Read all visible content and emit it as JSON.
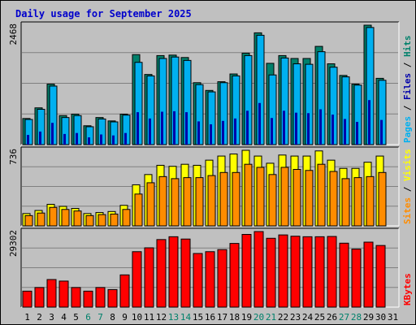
{
  "chart_data": [
    {
      "type": "bar",
      "title": "Daily usage for September 2025",
      "ymax_label": "2468",
      "ylim": [
        0,
        2468
      ],
      "x": [
        "1",
        "2",
        "3",
        "4",
        "5",
        "6",
        "7",
        "8",
        "9",
        "10",
        "11",
        "12",
        "13",
        "14",
        "15",
        "16",
        "17",
        "18",
        "19",
        "20",
        "21",
        "22",
        "23",
        "24",
        "25",
        "26",
        "27",
        "28",
        "29",
        "30",
        "31"
      ],
      "weekend_days": [
        "6",
        "7",
        "13",
        "14",
        "20",
        "21",
        "27",
        "28"
      ],
      "series": [
        {
          "name": "Hits",
          "color": "#00806b",
          "values": [
            540,
            760,
            1250,
            600,
            630,
            390,
            560,
            490,
            630,
            1860,
            1450,
            1840,
            1850,
            1800,
            1280,
            1120,
            1300,
            1460,
            1890,
            2310,
            1680,
            1840,
            1780,
            1780,
            2030,
            1670,
            1430,
            1250,
            2468,
            1370,
            0
          ]
        },
        {
          "name": "Files",
          "color": "#00b0f0",
          "values": [
            520,
            730,
            1210,
            560,
            600,
            370,
            530,
            470,
            610,
            1700,
            1420,
            1780,
            1810,
            1740,
            1240,
            1090,
            1280,
            1420,
            1840,
            2260,
            1440,
            1790,
            1670,
            1660,
            1920,
            1600,
            1400,
            1230,
            2420,
            1330,
            0
          ]
        },
        {
          "name": "Pages",
          "color": "#0000aa",
          "values": [
            200,
            270,
            450,
            220,
            240,
            150,
            210,
            190,
            240,
            670,
            540,
            680,
            690,
            670,
            480,
            420,
            490,
            540,
            700,
            860,
            550,
            700,
            660,
            650,
            730,
            620,
            530,
            470,
            920,
            510,
            0
          ]
        }
      ],
      "side_labels": [
        {
          "text": "Pages",
          "color": "#00b0f0"
        },
        {
          "text": " / ",
          "color": "#000000"
        },
        {
          "text": "Files",
          "color": "#0000aa"
        },
        {
          "text": " / ",
          "color": "#000000"
        },
        {
          "text": "Hits",
          "color": "#00806b"
        }
      ]
    },
    {
      "type": "bar",
      "ymax_label": "736",
      "ylim": [
        0,
        736
      ],
      "series": [
        {
          "name": "Visits",
          "color": "#ffff00",
          "values": [
            120,
            150,
            210,
            190,
            170,
            120,
            130,
            140,
            200,
            400,
            500,
            590,
            580,
            600,
            590,
            640,
            680,
            700,
            736,
            680,
            610,
            690,
            680,
            680,
            730,
            640,
            560,
            560,
            620,
            680,
            0
          ]
        },
        {
          "name": "Sites",
          "color": "#ff8c00",
          "values": [
            100,
            125,
            180,
            160,
            145,
            100,
            110,
            115,
            160,
            310,
            420,
            480,
            460,
            470,
            470,
            490,
            520,
            520,
            600,
            570,
            500,
            570,
            550,
            540,
            600,
            530,
            460,
            470,
            480,
            520,
            0
          ]
        }
      ],
      "side_labels": [
        {
          "text": "Sites",
          "color": "#ff8c00"
        },
        {
          "text": " / ",
          "color": "#000000"
        },
        {
          "text": "Visits",
          "color": "#ffff00"
        }
      ]
    },
    {
      "type": "bar",
      "ymax_label": "29302",
      "ylim": [
        0,
        29302
      ],
      "series": [
        {
          "name": "KBytes",
          "color": "#ff0000",
          "values": [
            6200,
            7600,
            10700,
            10100,
            7600,
            6200,
            7600,
            6800,
            12500,
            21500,
            23000,
            26200,
            27300,
            26400,
            20800,
            21500,
            22300,
            24700,
            28200,
            29302,
            26700,
            28000,
            27500,
            27300,
            27300,
            27400,
            24800,
            22500,
            25200,
            23900,
            0
          ]
        }
      ],
      "side_labels": [
        {
          "text": "KBytes",
          "color": "#ff0000"
        }
      ]
    }
  ]
}
